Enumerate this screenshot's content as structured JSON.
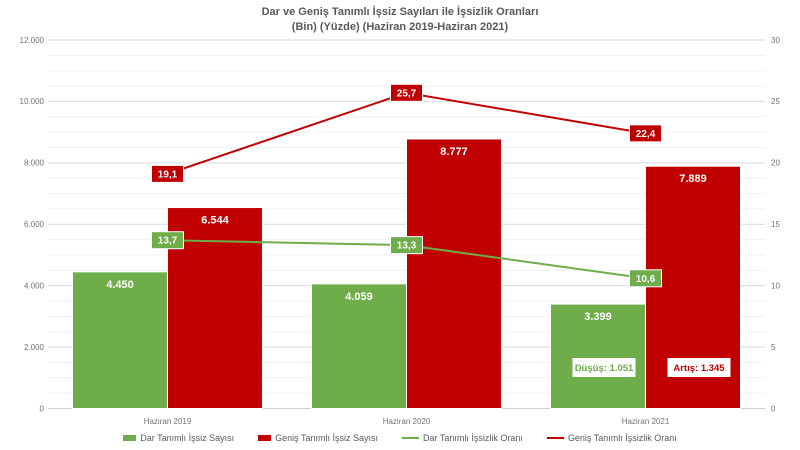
{
  "title": {
    "line1": "Dar ve Geniş Tanımlı İşsiz Sayıları ile İşsizlik Oranları",
    "line2": "(Bin) (Yüzde) (Haziran 2019-Haziran 2021)"
  },
  "colors": {
    "green": "#6EAD49",
    "red": "#C00000",
    "grid_major": "#D9D9D9",
    "grid_minor": "#F1F1F1",
    "axis_line": "#CFCFCF",
    "tick_text": "#737373",
    "legend_text": "#595959",
    "title_text": "#595959",
    "bar_label_text": "#FFFFFF",
    "annotation_bg": "#FFFFFF"
  },
  "chart_data": {
    "type": "bar",
    "subtype": "bar-line-combo",
    "title": "Dar ve Geniş Tanımlı İşsiz Sayıları ile İşsizlik Oranları (Bin) (Yüzde) (Haziran 2019-Haziran 2021)",
    "categories": [
      "Haziran 2019",
      "Haziran 2020",
      "Haziran 2021"
    ],
    "bar_series": [
      {
        "name": "Dar Tanımlı İşsiz Sayısı",
        "key": "dar-tanimli-issiz-sayisi",
        "color_key": "green",
        "axis": "left",
        "values": [
          4450,
          4059,
          3399
        ],
        "labels": [
          "4.450",
          "4.059",
          "3.399"
        ]
      },
      {
        "name": "Geniş Tanımlı İşsiz Sayısı",
        "key": "genis-tanimli-issiz-sayisi",
        "color_key": "red",
        "axis": "left",
        "values": [
          6544,
          8777,
          7889
        ],
        "labels": [
          "6.544",
          "8.777",
          "7.889"
        ]
      }
    ],
    "line_series": [
      {
        "name": "Dar Tanımlı İşsizlik Oranı",
        "key": "dar-tanimli-issizlik-orani",
        "color_key": "green",
        "axis": "right",
        "values": [
          13.7,
          13.3,
          10.6
        ],
        "labels": [
          "13,7",
          "13,3",
          "10,6"
        ]
      },
      {
        "name": "Geniş Tanımlı İşsizlik Oranı",
        "key": "genis-tanimli-issizlik-orani",
        "color_key": "red",
        "axis": "right",
        "values": [
          19.1,
          25.7,
          22.4
        ],
        "labels": [
          "19,1",
          "25,7",
          "22,4"
        ]
      }
    ],
    "left_axis": {
      "min": 0,
      "max": 12000,
      "major_step": 2000,
      "minor_step": 500,
      "tick_labels": [
        "0",
        "2.000",
        "4.000",
        "6.000",
        "8.000",
        "10.000",
        "12.000"
      ]
    },
    "right_axis": {
      "min": 0,
      "max": 30,
      "major_step": 5,
      "tick_labels": [
        "0",
        "5",
        "10",
        "15",
        "20",
        "25",
        "30"
      ]
    },
    "annotations": [
      {
        "text": "Düşüş: 1.051",
        "color_key": "green",
        "category_index": 2,
        "bar_index": 0
      },
      {
        "text": "Artış: 1.345",
        "color_key": "red",
        "category_index": 2,
        "bar_index": 1
      }
    ],
    "legend_position": "bottom",
    "grid": "horizontal major + minor"
  },
  "legend": {
    "items": [
      {
        "label": "Dar Tanımlı İşsiz Sayısı",
        "swatch": "square",
        "color_key": "green"
      },
      {
        "label": "Geniş Tanımlı İşsiz Sayısı",
        "swatch": "square",
        "color_key": "red"
      },
      {
        "label": "Dar Tanımlı İşsizlik Oranı",
        "swatch": "line",
        "color_key": "green"
      },
      {
        "label": "Geniş Tanımlı İşsizlik Oranı",
        "swatch": "line",
        "color_key": "red"
      }
    ]
  }
}
